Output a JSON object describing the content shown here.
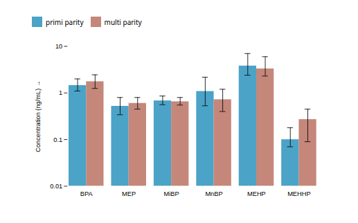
{
  "chart_data": {
    "type": "bar",
    "categories": [
      "BPA",
      "MEP",
      "MiBP",
      "MnBP",
      "MEHP",
      "MEHHP"
    ],
    "series": [
      {
        "name": "primi parity",
        "color": "#4BA3C7",
        "values": [
          1.45,
          0.52,
          0.68,
          1.08,
          3.8,
          0.1
        ],
        "yerr_low": [
          0.35,
          0.18,
          0.12,
          0.55,
          1.4,
          0.03
        ],
        "yerr_high": [
          0.55,
          0.28,
          0.18,
          1.1,
          3.2,
          0.08
        ]
      },
      {
        "name": "multi parity",
        "color": "#C4877A",
        "values": [
          1.75,
          0.6,
          0.65,
          0.72,
          3.3,
          0.27
        ],
        "yerr_low": [
          0.5,
          0.15,
          0.1,
          0.32,
          1.0,
          0.18
        ],
        "yerr_high": [
          0.7,
          0.2,
          0.15,
          0.48,
          2.7,
          0.18
        ]
      }
    ],
    "ylabel": "Concentration (ng/mL)",
    "ylim": [
      0.01,
      10
    ],
    "yticks": [
      0.01,
      0.1,
      1,
      10
    ],
    "log": "y",
    "grid": false,
    "legend": "upper left"
  }
}
